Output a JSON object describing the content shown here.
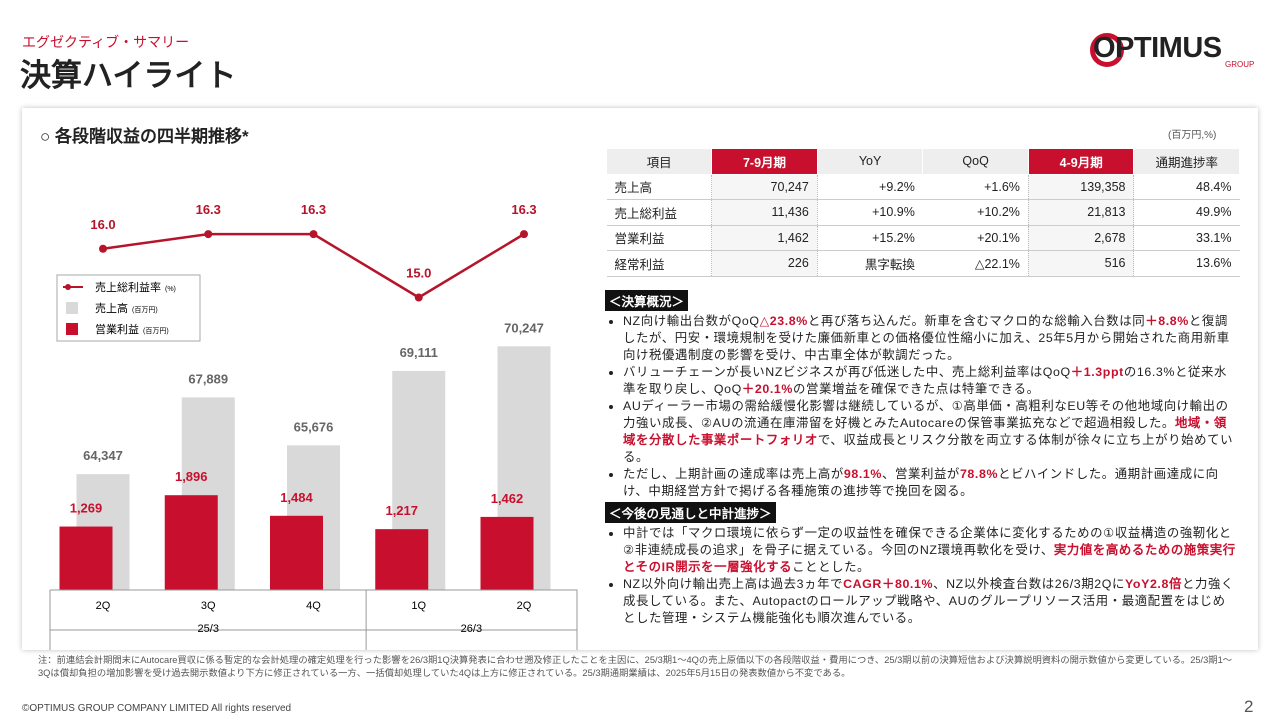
{
  "header": {
    "breadcrumb": "エグゼクティブ・サマリー",
    "title": "決算ハイライト"
  },
  "logo": {
    "name": "OPTIMUS",
    "sub": "GROUP"
  },
  "panel_title": "○ 各段階収益の四半期推移*",
  "chart_data": {
    "type": "combo",
    "categories": [
      "2Q",
      "3Q",
      "4Q",
      "1Q",
      "2Q"
    ],
    "groups": [
      {
        "label": "25/3",
        "span": 3
      },
      {
        "label": "26/3",
        "span": 2
      }
    ],
    "series": [
      {
        "name": "売上総利益率",
        "unit": "(%)",
        "type": "line",
        "color": "#b5142a",
        "values": [
          16.0,
          16.3,
          16.3,
          15.0,
          16.3
        ],
        "value_labels": [
          "16.0",
          "16.3",
          "16.3",
          "15.0",
          "16.3"
        ],
        "ylim": [
          9,
          17
        ]
      },
      {
        "name": "売上高",
        "unit": "(百万円)",
        "type": "bar",
        "color": "#d9d9d9",
        "values": [
          64347,
          67889,
          65676,
          69111,
          70247
        ],
        "value_labels": [
          "64,347",
          "67,889",
          "65,676",
          "69,111",
          "70,247"
        ],
        "ylim": [
          59000,
          77000
        ]
      },
      {
        "name": "営業利益",
        "unit": "(百万円)",
        "type": "bar",
        "color": "#c8102e",
        "values": [
          1269,
          1896,
          1484,
          1217,
          1462
        ],
        "value_labels": [
          "1,269",
          "1,896",
          "1,484",
          "1,217",
          "1,462"
        ],
        "ylim": [
          0,
          7800
        ]
      }
    ]
  },
  "table": {
    "unit": "(百万円,%)",
    "header": [
      "項目",
      "7-9月期",
      "YoY",
      "QoQ",
      "4-9月期",
      "通期進捗率"
    ],
    "rows": [
      [
        "売上高",
        "70,247",
        "+9.2%",
        "+1.6%",
        "139,358",
        "48.4%"
      ],
      [
        "売上総利益",
        "11,436",
        "+10.9%",
        "+10.2%",
        "21,813",
        "49.9%"
      ],
      [
        "営業利益",
        "1,462",
        "+15.2%",
        "+20.1%",
        "2,678",
        "33.1%"
      ],
      [
        "経常利益",
        "226",
        "黒字転換",
        "△22.1%",
        "516",
        "13.6%"
      ]
    ]
  },
  "overview": {
    "title": "＜決算概況＞",
    "bullets": [
      [
        "NZ向け輸出台数がQoQ",
        {
          "red": "△23.8%"
        },
        "と再び落ち込んだ。新車を含むマクロ的な総輸入台数は同",
        {
          "red": "＋8.8%"
        },
        "と復調したが、円安・環境規制を受けた廉価新車との価格優位性縮小に加え、25年5月から開始された商用新車向け税優遇制度の影響を受け、中古車全体が軟調だった。"
      ],
      [
        "バリューチェーンが長いNZビジネスが再び低迷した中、売上総利益率はQoQ",
        {
          "red": "＋1.3ppt"
        },
        "の16.3%と従来水準を取り戻し、QoQ",
        {
          "red": "＋20.1%"
        },
        "の営業増益を確保できた点は特筆できる。"
      ],
      [
        "AUディーラー市場の需給緩慢化影響は継続しているが、①高単価・高粗利なEU等その他地域向け輸出の力強い成長、②AUの流通在庫滞留を好機とみたAutocareの保管事業拡充などで超過相殺した。",
        {
          "red": "地域・領域を分散した事業ポートフォリオ"
        },
        "で、収益成長とリスク分散を両立する体制が徐々に立ち上がり始めている。"
      ],
      [
        "ただし、上期計画の達成率は売上高が",
        {
          "red": "98.1%"
        },
        "、営業利益が",
        {
          "red": "78.8%"
        },
        "とビハインドした。通期計画達成に向け、中期経営方針で掲げる各種施策の進捗等で挽回を図る。"
      ]
    ]
  },
  "outlook": {
    "title": "＜今後の見通しと中計進捗＞",
    "bullets": [
      [
        "中計では「マクロ環境に依らず一定の収益性を確保できる企業体に変化するための①収益構造の強靭化と②非連続成長の追求」を骨子に据えている。今回のNZ環境再軟化を受け、",
        {
          "red": "実力値を高めるための施策実行とそのIR開示を一層強化する"
        },
        "こととした。"
      ],
      [
        "NZ以外向け輸出売上高は過去3ヵ年で",
        {
          "red": "CAGR＋80.1%"
        },
        "、NZ以外検査台数は26/3期2Qに",
        {
          "red": "YoY2.8倍"
        },
        "と力強く成長している。また、Autopactのロールアップ戦略や、AUのグループリソース活用・最適配置をはじめとした管理・システム機能強化も順次進んでいる。"
      ]
    ]
  },
  "note": "注：前連結会計期間末にAutocare買収に係る暫定的な会計処理の確定処理を行った影響を26/3期1Q決算発表に合わせ遡及修正したことを主因に、25/3期1～4Qの売上原価以下の各段階収益・費用につき、25/3期以前の決算短信および決算説明資料の開示数値から変更している。25/3期1～3Qは償却負担の増加影響を受け過去開示数値より下方に修正されている一方、一括償却処理していた4Qは上方に修正されている。25/3期通期業績は、2025年5月15日の発表数値から不変である。",
  "footer": {
    "copyright": "©OPTIMUS GROUP COMPANY LIMITED All rights reserved",
    "page": "2"
  }
}
